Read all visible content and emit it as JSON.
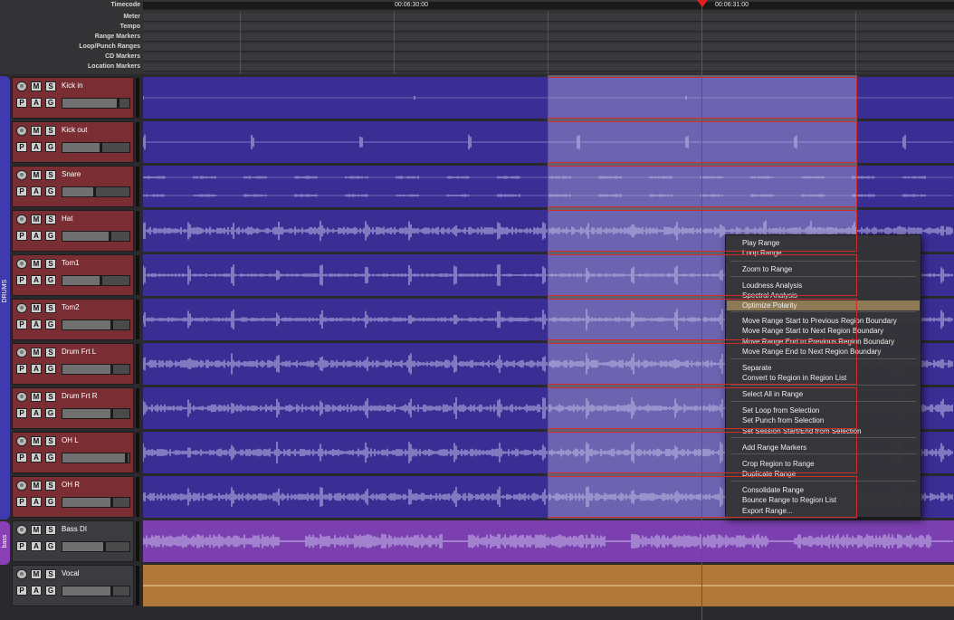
{
  "rulers": {
    "rows": [
      "Timecode",
      "Meter",
      "Tempo",
      "Range Markers",
      "Loop/Punch Ranges",
      "CD Markers",
      "Location Markers"
    ],
    "timecodes": [
      {
        "label": "00:06:30:00"
      },
      {
        "label": "00:06:31:00"
      }
    ]
  },
  "groups": [
    {
      "label": "DRUMS",
      "color": "#3f3ab0"
    },
    {
      "label": "bass",
      "color": "#8b3fb5"
    }
  ],
  "tracks": [
    {
      "name": "Kick in",
      "header": "red",
      "region_color": "#3a2d94",
      "wave": "sparse",
      "fader_level": 0.84
    },
    {
      "name": "Kick out",
      "header": "red",
      "region_color": "#3a2d94",
      "wave": "kick",
      "fader_level": 0.58
    },
    {
      "name": "Snare",
      "header": "red",
      "region_color": "#3a2d94",
      "wave": "snare",
      "fader_level": 0.48
    },
    {
      "name": "Hat",
      "header": "red",
      "region_color": "#3a2d94",
      "wave": "dense",
      "fader_level": 0.72
    },
    {
      "name": "Tom1",
      "header": "red",
      "region_color": "#3a2d94",
      "wave": "tom",
      "fader_level": 0.58
    },
    {
      "name": "Tom2",
      "header": "red",
      "region_color": "#3a2d94",
      "wave": "tom2",
      "fader_level": 0.74
    },
    {
      "name": "Drum Frt L",
      "header": "red",
      "region_color": "#3a2d94",
      "wave": "dense",
      "fader_level": 0.74
    },
    {
      "name": "Drum Frt R",
      "header": "red",
      "region_color": "#3a2d94",
      "wave": "dense",
      "fader_level": 0.74
    },
    {
      "name": "OH L",
      "header": "red",
      "region_color": "#3a2d94",
      "wave": "dense",
      "fader_level": 0.96
    },
    {
      "name": "OH R",
      "header": "red",
      "region_color": "#3a2d94",
      "wave": "dense",
      "fader_level": 0.74
    },
    {
      "name": "Bass DI",
      "header": "dark",
      "region_color": "#7b3fb0",
      "wave": "bass",
      "fader_level": 0.64
    },
    {
      "name": "Vocal",
      "header": "dark",
      "region_color": "#b07838",
      "wave": "flat",
      "fader_level": 0.74
    }
  ],
  "buttons": {
    "mute": "M",
    "solo": "S",
    "playlist": "P",
    "automation": "A",
    "group": "G"
  },
  "context_menu": {
    "items": [
      {
        "label": "Play Range"
      },
      {
        "label": "Loop Range"
      },
      {
        "label": "Zoom to Range"
      },
      {
        "label": "Loudness Analysis"
      },
      {
        "label": "Spectral Analysis"
      },
      {
        "label": "Optimize Polarity"
      },
      {
        "label": "Move Range Start to Previous Region Boundary"
      },
      {
        "label": "Move Range Start to Next Region Boundary"
      },
      {
        "label": "Move Range End to Previous Region Boundary"
      },
      {
        "label": "Move Range End to Next Region Boundary"
      },
      {
        "label": "Separate"
      },
      {
        "label": "Convert to Region in Region List"
      },
      {
        "label": "Select All in Range"
      },
      {
        "label": "Set Loop from Selection"
      },
      {
        "label": "Set Punch from Selection"
      },
      {
        "label": "Set Session Start/End from Selection"
      },
      {
        "label": "Add Range Markers"
      },
      {
        "label": "Crop Region to Range"
      },
      {
        "label": "Duplicate Range"
      },
      {
        "label": "Consolidate Range"
      },
      {
        "label": "Bounce Range to Region List"
      },
      {
        "label": "Export Range..."
      }
    ],
    "highlighted": "Optimize Polarity"
  },
  "colors": {
    "selection_outline": "#d02c2c",
    "playhead": "#e02020",
    "menu_highlight": "#8d7a54",
    "track_header_red": "#7a2e33"
  }
}
